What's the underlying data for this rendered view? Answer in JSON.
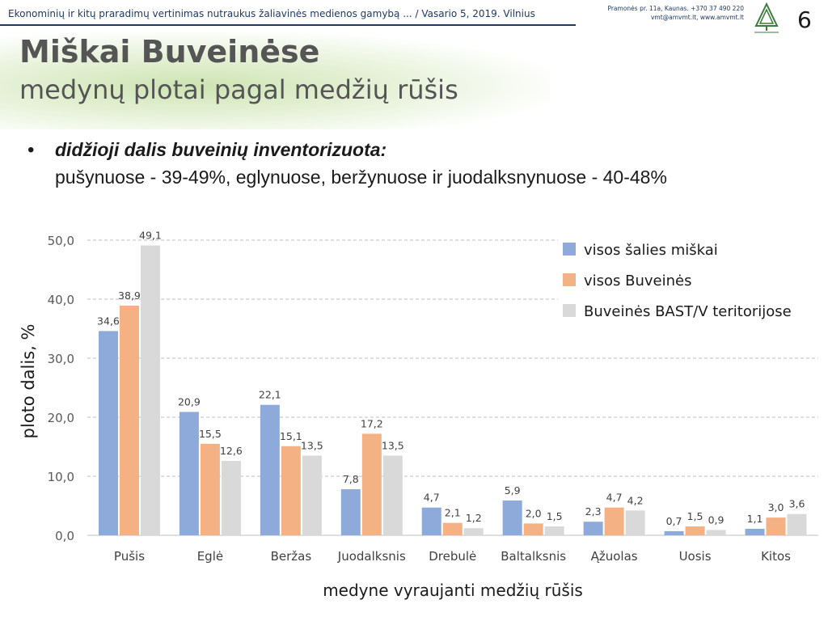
{
  "header": {
    "text": "Ekonominių ir kitų praradimų vertinimas nutraukus žaliavinės medienos gamybą ... / Vasario 5, 2019.  Vilnius",
    "contact_line1": "Pramonės pr. 11a, Kaunas. +370 37 490 220",
    "contact_line2": "vmt@amvmt.lt, www.amvmt.lt",
    "logo_icon": "forest-tree-logo-icon",
    "page_number": "6"
  },
  "title": "Miškai Buveinėse",
  "subtitle": "medynų plotai pagal medžių rūšis",
  "bullet": {
    "heading": "didžioji dalis buveinių inventorizuota:",
    "text": "pušynuose - 39-49%, eglynuose, beržynuose ir juodalksnynuose - 40-48%"
  },
  "chart_data": {
    "type": "bar",
    "categories": [
      "Pušis",
      "Eglė",
      "Beržas",
      "Juodalksnis",
      "Drebulė",
      "Baltalksnis",
      "Ąžuolas",
      "Uosis",
      "Kitos"
    ],
    "series": [
      {
        "name": "visos šalies miškai",
        "color": "#8eaadb",
        "values": [
          34.6,
          20.9,
          22.1,
          7.8,
          4.7,
          5.9,
          2.3,
          0.7,
          1.1
        ],
        "labels": [
          "34,6",
          "20,9",
          "22,1",
          "7,8",
          "4,7",
          "5,9",
          "2,3",
          "0,7",
          "1,1"
        ]
      },
      {
        "name": "visos Buveinės",
        "color": "#f4b183",
        "values": [
          38.9,
          15.5,
          15.1,
          17.2,
          2.1,
          2.0,
          4.7,
          1.5,
          3.0
        ],
        "labels": [
          "38,9",
          "15,5",
          "15,1",
          "17,2",
          "2,1",
          "2,0",
          "4,7",
          "1,5",
          "3,0"
        ]
      },
      {
        "name": "Buveinės BAST/V teritorijose",
        "color": "#d9d9d9",
        "values": [
          49.1,
          12.6,
          13.5,
          13.5,
          1.2,
          1.5,
          4.2,
          0.9,
          3.6
        ],
        "labels": [
          "49,1",
          "12,6",
          "13,5",
          "13,5",
          "1,2",
          "1,5",
          "4,2",
          "0,9",
          "3,6"
        ]
      }
    ],
    "yticks": [
      "0,0",
      "10,0",
      "20,0",
      "30,0",
      "40,0",
      "50,0"
    ],
    "ylim": [
      0,
      50
    ],
    "ylabel": "ploto dalis, %",
    "xlabel": "medyne vyraujanti medžių rūšis",
    "grid": true,
    "legend_position": "top-right"
  }
}
